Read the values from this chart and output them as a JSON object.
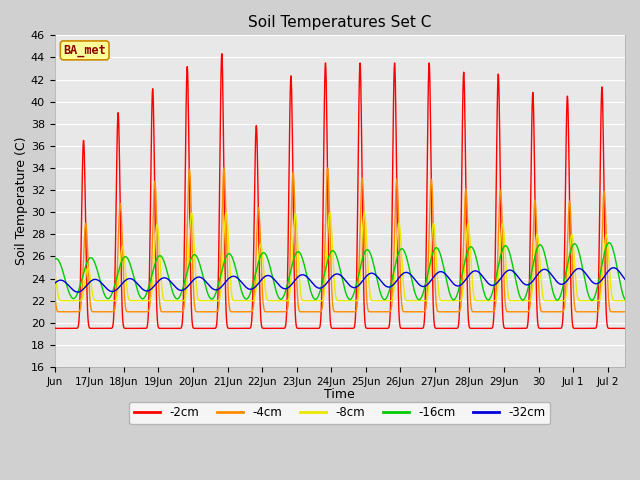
{
  "title": "Soil Temperatures Set C",
  "xlabel": "Time",
  "ylabel": "Soil Temperature (C)",
  "ylim": [
    16,
    46
  ],
  "depths": [
    "-2cm",
    "-4cm",
    "-8cm",
    "-16cm",
    "-32cm"
  ],
  "colors": [
    "#ff0000",
    "#ff8c00",
    "#e8e800",
    "#00cc00",
    "#0000dd"
  ],
  "bg_color": "#e8e8e8",
  "fig_bg": "#d0d0d0",
  "tick_labels": [
    "Jun",
    "17Jun",
    "18Jun",
    "19Jun",
    "20Jun",
    "21Jun",
    "22Jun",
    "23Jun",
    "24Jun",
    "25Jun",
    "26Jun",
    "27Jun",
    "28Jun",
    "29Jun",
    "30",
    "Jul 1",
    "Jul 2"
  ],
  "ba_met_color": "#8B0000",
  "ba_met_bg": "#ffff99",
  "ba_met_border": "#cc8800"
}
